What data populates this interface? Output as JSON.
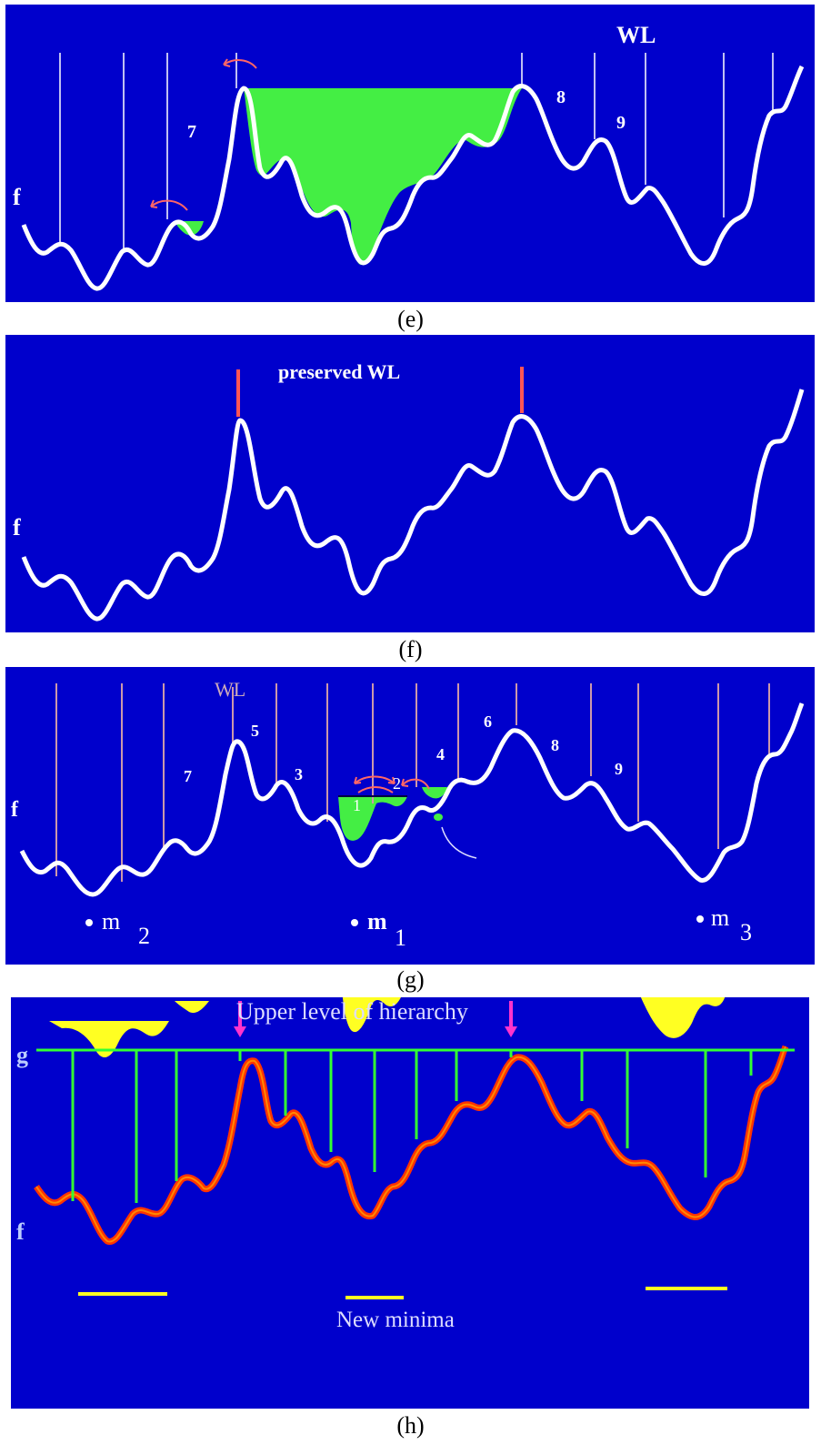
{
  "panels": {
    "e": {
      "caption": "(e)",
      "f_label": "f",
      "wl_label": "WL",
      "numbers": [
        "7",
        "8",
        "9"
      ]
    },
    "f": {
      "caption": "(f)",
      "f_label": "f",
      "title": "preserved WL"
    },
    "g": {
      "caption": "(g)",
      "f_label": "f",
      "wl_label": "WL",
      "numbers": [
        "7",
        "5",
        "3",
        "1",
        "2",
        "4",
        "6",
        "8",
        "9"
      ],
      "minima": [
        {
          "label": "m",
          "sub": "2"
        },
        {
          "label": "m",
          "sub": "1"
        },
        {
          "label": "m",
          "sub": "3"
        }
      ]
    },
    "h": {
      "caption": "(h)",
      "f_label": "f",
      "g_label": "g",
      "top_label": "Upper level of hierarchy",
      "bottom_label": "New minima"
    }
  },
  "colors": {
    "background": "#0000cc",
    "curve": "#ffffff",
    "flood": "#44ee44",
    "arrow": "#ff6666",
    "marker": "#ff5555",
    "thread": "#cc99aa",
    "level_line": "#33ff33",
    "hier_arrow": "#ff33cc",
    "orange_curve": "#ff3300",
    "yellow": "#ffff22"
  }
}
